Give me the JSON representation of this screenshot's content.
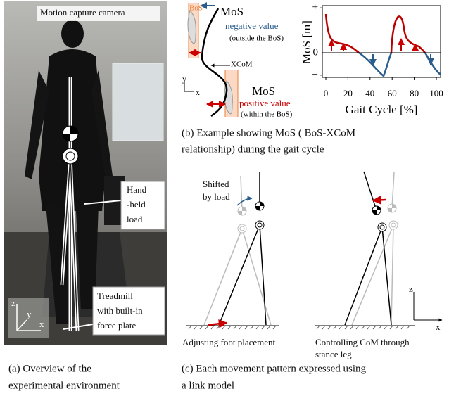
{
  "panel_a": {
    "camera_label": "Motion capture camera",
    "load_label": [
      "Hand",
      "-held",
      "load"
    ],
    "treadmill_label": [
      "Treadmill",
      "with built-in",
      "force plate"
    ],
    "axes": {
      "z": "z",
      "y": "y",
      "x": "x"
    },
    "caption": [
      "(a) Overview of the",
      "experimental environment"
    ]
  },
  "panel_b": {
    "diagram": {
      "bos": "BoS",
      "mos_top": "MoS",
      "negative": "negative value",
      "outside": "(outside the BoS)",
      "xcom": "XCoM",
      "mos_bottom": "MoS",
      "positive": "positive value",
      "within": "(within the BoS)",
      "axis_y": "y",
      "axis_x": "x"
    },
    "chart": {
      "ylabel": "MoS [m]",
      "xlabel": "Gait Cycle [%]",
      "xlim": [
        0,
        100
      ],
      "xticks": [
        0,
        20,
        40,
        60,
        80,
        100
      ],
      "ylim": [
        -0.55,
        1.05
      ],
      "yticks": [
        {
          "value": 1,
          "label": "+"
        },
        0,
        {
          "value": -0.5,
          "label": "−"
        }
      ]
    },
    "caption": [
      "(b) Example showing MoS ( BoS-XCoM",
      "relationship) during the gait cycle"
    ]
  },
  "panel_c": {
    "shifted": [
      "Shifted",
      "by load"
    ],
    "left_label": "Adjusting foot placement",
    "right_label": [
      "Controlling CoM through",
      "stance leg"
    ],
    "axis_z": "z",
    "axis_x": "x",
    "caption": [
      "(c) Each movement pattern  expressed using",
      "a link model"
    ]
  }
}
